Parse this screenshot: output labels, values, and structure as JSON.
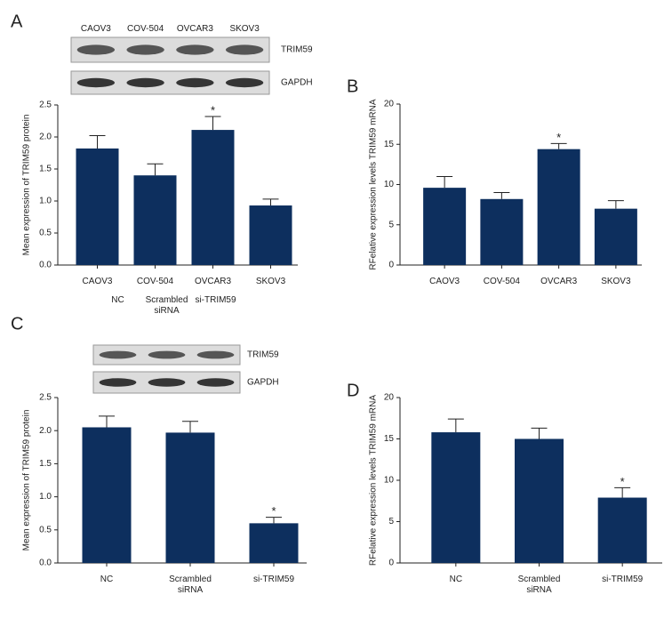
{
  "chart_data": [
    {
      "type": "bar",
      "panel": "A",
      "ylabel": "Mean expression of TRIM59 protein",
      "categories": [
        "CAOV3",
        "COV-504",
        "OVCAR3",
        "SKOV3"
      ],
      "values": [
        1.82,
        1.4,
        2.11,
        0.93
      ],
      "errors": [
        0.2,
        0.18,
        0.21,
        0.1
      ],
      "stars": [
        null,
        null,
        "*",
        null
      ],
      "color": "#0d2f5e",
      "ylim": [
        0,
        2.5
      ],
      "yticks": [
        {
          "value": 0,
          "label": "0.0"
        },
        0.5,
        {
          "value": 1,
          "label": "1.0"
        },
        1.5,
        {
          "value": 2,
          "label": "2.0"
        },
        2.5
      ],
      "blot": {
        "lanes": [
          "CAOV3",
          "COV-504",
          "OVCAR3",
          "SKOV3"
        ],
        "rows": [
          "TRIM59",
          "GAPDH"
        ]
      }
    },
    {
      "type": "bar",
      "panel": "B",
      "ylabel": "RFelative expression levels TRIM59 mRNA",
      "categories": [
        "CAOV3",
        "COV-504",
        "OVCAR3",
        "SKOV3"
      ],
      "values": [
        9.6,
        8.2,
        14.4,
        7.0
      ],
      "errors": [
        1.4,
        0.8,
        0.7,
        1.0
      ],
      "stars": [
        null,
        null,
        "*",
        null
      ],
      "color": "#0d2f5e",
      "ylim": [
        0,
        20
      ],
      "yticks": [
        0,
        5,
        10,
        15,
        20
      ]
    },
    {
      "type": "bar",
      "panel": "C",
      "ylabel": "Mean expression of TRIM59 protein",
      "categories": [
        "NC",
        "Scrambled siRNA",
        "si-TRIM59"
      ],
      "values": [
        2.05,
        1.97,
        0.6
      ],
      "errors": [
        0.17,
        0.17,
        0.09
      ],
      "stars": [
        null,
        null,
        "*"
      ],
      "color": "#0d2f5e",
      "ylim": [
        0,
        2.5
      ],
      "yticks": [
        {
          "value": 0,
          "label": "0.0"
        },
        0.5,
        {
          "value": 1,
          "label": "1.0"
        },
        1.5,
        {
          "value": 2,
          "label": "2.0"
        },
        2.5
      ],
      "blot": {
        "lanes": [
          "NC",
          "Scrambled siRNA",
          "si-TRIM59"
        ],
        "rows": [
          "TRIM59",
          "GAPDH"
        ]
      }
    },
    {
      "type": "bar",
      "panel": "D",
      "ylabel": "RFelative expression levels TRIM59 mRNA",
      "categories": [
        "NC",
        "Scrambled siRNA",
        "si-TRIM59"
      ],
      "values": [
        15.8,
        15.0,
        7.9
      ],
      "errors": [
        1.6,
        1.3,
        1.2
      ],
      "stars": [
        null,
        null,
        "*"
      ],
      "color": "#0d2f5e",
      "ylim": [
        0,
        20
      ],
      "yticks": [
        0,
        5,
        10,
        15,
        20
      ]
    }
  ]
}
